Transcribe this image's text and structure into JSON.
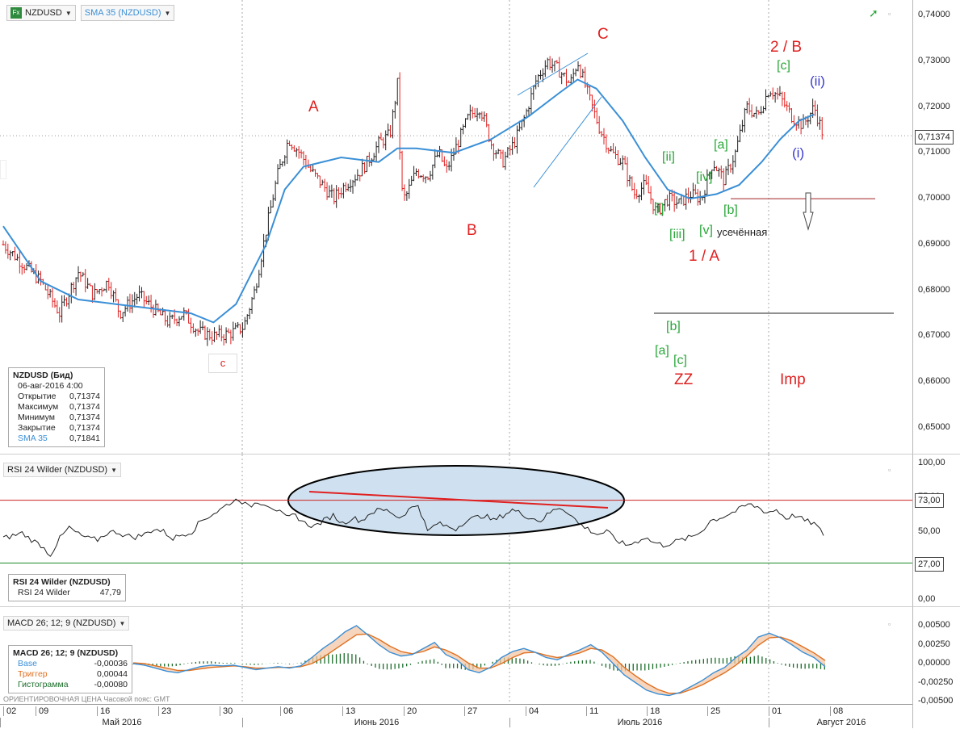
{
  "toolbar": {
    "symbol": "NZDUSD",
    "fx_label": "Fx",
    "indicator": "SMA 35 (NZDUSD)"
  },
  "legend_main": {
    "title": "NZDUSD (Бид)",
    "date": "06-авг-2016 4:00",
    "rows": [
      {
        "label": "Открытие",
        "value": "0,71374"
      },
      {
        "label": "Максимум",
        "value": "0,71374"
      },
      {
        "label": "Минимум",
        "value": "0,71374"
      },
      {
        "label": "Закрытие",
        "value": "0,71374"
      },
      {
        "label": "SMA 35",
        "value": "0,71841"
      }
    ],
    "sma_color": "#3a8fd6"
  },
  "rsi_panel": {
    "title": "RSI 24 Wilder (NZDUSD)",
    "legend_title": "RSI 24 Wilder (NZDUSD)",
    "legend_label": "RSI 24 Wilder",
    "legend_value": "47,79"
  },
  "macd_panel": {
    "title": "MACD 26; 12; 9 (NZDUSD)",
    "legend_title": "MACD 26; 12; 9 (NZDUSD)",
    "rows": [
      {
        "label": "Base",
        "value": "-0,00036",
        "color": "#3a8fd6"
      },
      {
        "label": "Триггер",
        "value": "0,00044",
        "color": "#e07020"
      },
      {
        "label": "Гистограмма",
        "value": "-0,00080",
        "color": "#1b6e2a"
      }
    ]
  },
  "footer_note": "ОРИЕНТИРОВОЧНАЯ ЦЕНА   Часовой пояс: GMT",
  "annotations": {
    "A": "A",
    "B": "B",
    "C": "C",
    "c": "c",
    "twoB": "2 / B",
    "oneA": "1 / A",
    "c_br": "[c]",
    "ii_par": "(ii)",
    "i_par": "(i)",
    "a_br": "[a]",
    "ii_br": "[ii]",
    "iv_br": "[iv]",
    "i_br": "[i]",
    "b_br": "[b]",
    "iii_br": "[iii]",
    "v_br": "[v]",
    "truncated": "усечённая",
    "b_br2": "[b]",
    "a_br2": "[a]",
    "c_br2": "[c]",
    "ZZ": "ZZ",
    "Imp": "Imp"
  },
  "price_tag": "0,71374",
  "rsi_tags": {
    "upper": "73,00",
    "lower": "27,00"
  },
  "colors": {
    "candle_up": "#222222",
    "candle_down": "#e02020",
    "sma": "#3a8fd6",
    "rsi": "#222222",
    "rsi_upper": "#cc2222",
    "rsi_lower": "#1f8a2a",
    "macd_base": "#3a8fd6",
    "macd_trigger": "#e07020",
    "macd_hist": "#1b6e2a",
    "ellipse_fill": "#cfe1f0"
  },
  "chart_data": [
    {
      "type": "candlestick",
      "title": "NZDUSD",
      "ylim": [
        0.645,
        0.741
      ],
      "yticks": [
        "0,74000",
        "0,73000",
        "0,72000",
        "0,71000",
        "0,70000",
        "0,69000",
        "0,68000",
        "0,67000",
        "0,66000",
        "0,65000"
      ],
      "x_labels": [
        "02",
        "09",
        "16",
        "23",
        "30",
        "06",
        "13",
        "20",
        "27",
        "04",
        "11",
        "18",
        "25",
        "01",
        "08"
      ],
      "months": [
        "Май 2016",
        "Июнь 2016",
        "Июль 2016",
        "Август 2016"
      ],
      "close_path": [
        [
          0,
          0.69
        ],
        [
          10,
          0.686
        ],
        [
          20,
          0.682
        ],
        [
          30,
          0.675
        ],
        [
          40,
          0.684
        ],
        [
          48,
          0.679
        ],
        [
          56,
          0.682
        ],
        [
          62,
          0.675
        ],
        [
          72,
          0.679
        ],
        [
          80,
          0.676
        ],
        [
          88,
          0.673
        ],
        [
          96,
          0.675
        ],
        [
          104,
          0.671
        ],
        [
          112,
          0.67
        ],
        [
          120,
          0.6705
        ],
        [
          128,
          0.672
        ],
        [
          134,
          0.68
        ],
        [
          140,
          0.693
        ],
        [
          146,
          0.705
        ],
        [
          152,
          0.713
        ],
        [
          158,
          0.71
        ],
        [
          164,
          0.706
        ],
        [
          170,
          0.703
        ],
        [
          176,
          0.7
        ],
        [
          182,
          0.703
        ],
        [
          188,
          0.705
        ],
        [
          194,
          0.708
        ],
        [
          200,
          0.712
        ],
        [
          206,
          0.714
        ],
        [
          210,
          0.725
        ],
        [
          212,
          0.702
        ],
        [
          214,
          0.7
        ],
        [
          220,
          0.706
        ],
        [
          226,
          0.705
        ],
        [
          232,
          0.71
        ],
        [
          236,
          0.706
        ],
        [
          242,
          0.712
        ],
        [
          248,
          0.718
        ],
        [
          254,
          0.72
        ],
        [
          260,
          0.712
        ],
        [
          266,
          0.708
        ],
        [
          272,
          0.712
        ],
        [
          278,
          0.718
        ],
        [
          284,
          0.726
        ],
        [
          290,
          0.73
        ],
        [
          296,
          0.728
        ],
        [
          302,
          0.725
        ],
        [
          306,
          0.73
        ],
        [
          312,
          0.722
        ],
        [
          318,
          0.715
        ],
        [
          324,
          0.71
        ],
        [
          330,
          0.708
        ],
        [
          336,
          0.701
        ],
        [
          342,
          0.703
        ],
        [
          348,
          0.697
        ],
        [
          354,
          0.7
        ],
        [
          360,
          0.699
        ],
        [
          366,
          0.701
        ],
        [
          372,
          0.7
        ],
        [
          378,
          0.708
        ],
        [
          384,
          0.704
        ],
        [
          390,
          0.71
        ],
        [
          396,
          0.72
        ],
        [
          402,
          0.718
        ],
        [
          408,
          0.724
        ],
        [
          414,
          0.722
        ],
        [
          420,
          0.718
        ],
        [
          426,
          0.716
        ],
        [
          432,
          0.72
        ],
        [
          437,
          0.7137
        ]
      ],
      "sma_35": [
        [
          0,
          0.694
        ],
        [
          20,
          0.682
        ],
        [
          40,
          0.678
        ],
        [
          60,
          0.677
        ],
        [
          80,
          0.676
        ],
        [
          100,
          0.675
        ],
        [
          112,
          0.673
        ],
        [
          124,
          0.677
        ],
        [
          140,
          0.69
        ],
        [
          150,
          0.702
        ],
        [
          160,
          0.707
        ],
        [
          180,
          0.709
        ],
        [
          200,
          0.708
        ],
        [
          210,
          0.711
        ],
        [
          220,
          0.711
        ],
        [
          240,
          0.71
        ],
        [
          260,
          0.713
        ],
        [
          280,
          0.718
        ],
        [
          296,
          0.723
        ],
        [
          306,
          0.726
        ],
        [
          316,
          0.724
        ],
        [
          330,
          0.717
        ],
        [
          342,
          0.709
        ],
        [
          354,
          0.702
        ],
        [
          366,
          0.7
        ],
        [
          380,
          0.701
        ],
        [
          392,
          0.703
        ],
        [
          404,
          0.708
        ],
        [
          414,
          0.713
        ],
        [
          424,
          0.717
        ],
        [
          432,
          0.7184
        ]
      ],
      "horizontal_levels": [
        0.7,
        0.675
      ]
    },
    {
      "type": "line",
      "title": "RSI 24 Wilder (NZDUSD)",
      "ylim": [
        0,
        100
      ],
      "yticks": [
        "100,00",
        "75,00",
        "50,00",
        "25,00",
        "0,00"
      ],
      "levels": [
        73,
        27
      ],
      "series": [
        {
          "name": "RSI 24 Wilder",
          "values": [
            45,
            47,
            49,
            44,
            40,
            33,
            45,
            53,
            48,
            45,
            44,
            49,
            50,
            47,
            46,
            48,
            52,
            50,
            45,
            48,
            50,
            58,
            62,
            66,
            71,
            74,
            68,
            72,
            70,
            66,
            60,
            62,
            56,
            54,
            58,
            62,
            56,
            60,
            58,
            64,
            66,
            65,
            60,
            66,
            70,
            50,
            56,
            54,
            52,
            58,
            60,
            62,
            58,
            62,
            66,
            63,
            60,
            58,
            64,
            68,
            64,
            56,
            52,
            48,
            50,
            44,
            40,
            42,
            46,
            42,
            40,
            42,
            44,
            46,
            50,
            58,
            60,
            63,
            66,
            70,
            68,
            64,
            66,
            60,
            62,
            58,
            56,
            48
          ]
        }
      ]
    },
    {
      "type": "line",
      "title": "MACD 26; 12; 9 (NZDUSD)",
      "ylim": [
        -0.0055,
        0.0058
      ],
      "yticks": [
        "0,00500",
        "0,00250",
        "0,00000",
        "-0,00250",
        "-0,00500"
      ],
      "series": [
        {
          "name": "Base",
          "values": [
            0.0,
            -0.0002,
            -0.0006,
            -0.001,
            -0.0012,
            -0.0008,
            -0.0004,
            -0.0002,
            -0.0003,
            -0.0002,
            -0.0005,
            -0.0008,
            -0.0006,
            -0.0004,
            -0.0006,
            -0.0003,
            0.0008,
            0.002,
            0.003,
            0.0042,
            0.005,
            0.0038,
            0.0025,
            0.0015,
            0.001,
            0.0012,
            0.002,
            0.0028,
            0.0012,
            0.0005,
            -0.0008,
            -0.0012,
            -0.0005,
            0.0008,
            0.0016,
            0.002,
            0.0015,
            0.0008,
            0.0005,
            0.0012,
            0.0018,
            0.0025,
            0.0015,
            0.0,
            -0.0015,
            -0.0025,
            -0.0035,
            -0.004,
            -0.0042,
            -0.0038,
            -0.003,
            -0.0022,
            -0.0012,
            -0.0005,
            0.0008,
            0.0018,
            0.0035,
            0.004,
            0.0034,
            0.0025,
            0.0015,
            0.0008,
            -0.0004
          ]
        },
        {
          "name": "Триггер",
          "values": [
            0.0001,
            0.0,
            -0.0003,
            -0.0006,
            -0.0009,
            -0.0009,
            -0.0007,
            -0.0005,
            -0.0004,
            -0.0003,
            -0.0004,
            -0.0006,
            -0.0006,
            -0.0005,
            -0.0005,
            -0.0004,
            0.0,
            0.0008,
            0.0018,
            0.0028,
            0.0038,
            0.0039,
            0.0032,
            0.0023,
            0.0016,
            0.0013,
            0.0016,
            0.0022,
            0.0018,
            0.0011,
            0.0001,
            -0.0006,
            -0.0006,
            0.0,
            0.0008,
            0.0014,
            0.0015,
            0.0011,
            0.0008,
            0.001,
            0.0014,
            0.002,
            0.0018,
            0.0009,
            -0.0005,
            -0.0016,
            -0.0026,
            -0.0034,
            -0.0039,
            -0.0039,
            -0.0034,
            -0.0028,
            -0.002,
            -0.0012,
            -0.0002,
            0.001,
            0.0024,
            0.0034,
            0.0035,
            0.003,
            0.0022,
            0.0014,
            0.0004
          ]
        }
      ]
    }
  ]
}
